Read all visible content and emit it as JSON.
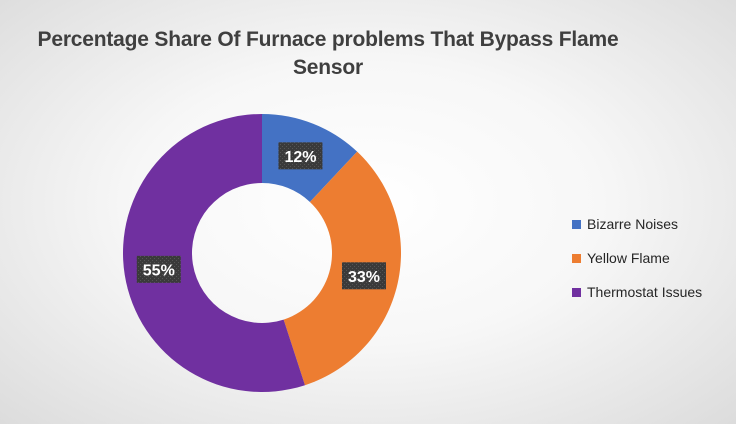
{
  "chart_data": {
    "type": "pie",
    "style": "donut",
    "title": "Percentage Share Of Furnace problems That Bypass Flame Sensor",
    "categories": [
      "Bizarre Noises",
      "Yellow Flame",
      "Thermostat Issues"
    ],
    "values": [
      12,
      33,
      55
    ],
    "data_labels": [
      "12%",
      "33%",
      "55%"
    ],
    "colors": [
      "#4472c4",
      "#ed7d31",
      "#7030a0"
    ],
    "legend_position": "right"
  }
}
